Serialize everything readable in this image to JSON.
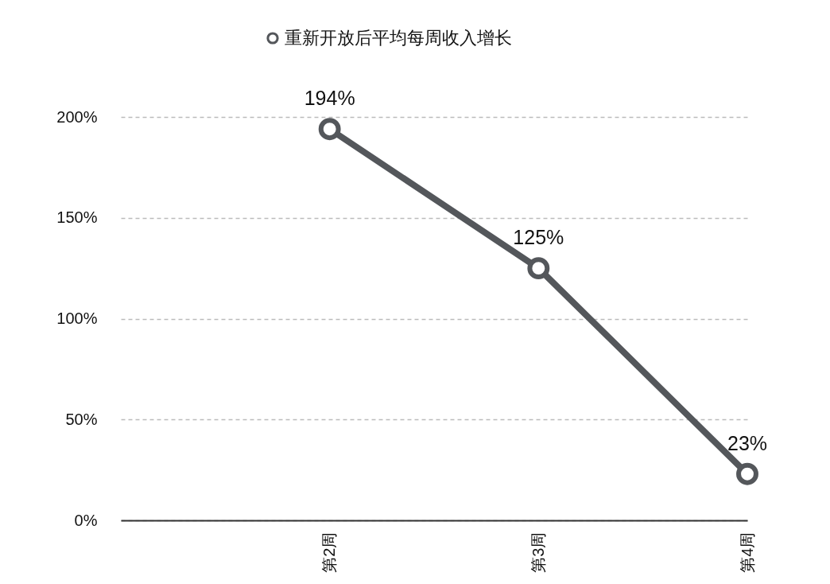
{
  "chart_data": {
    "type": "line",
    "categories": [
      null,
      "第2周",
      "第3周",
      "第4周"
    ],
    "series": [
      {
        "name": "重新开放后平均每周收入增长",
        "color": "#54575b",
        "values": [
          null,
          194,
          125,
          23
        ],
        "value_labels": [
          null,
          "194%",
          "125%",
          "23%"
        ]
      }
    ],
    "ylim": [
      0,
      200
    ],
    "yticks": [
      {
        "value": 0,
        "label": "0%"
      },
      {
        "value": 50,
        "label": "50%"
      },
      {
        "value": 100,
        "label": "100%"
      },
      {
        "value": 150,
        "label": "150%"
      },
      {
        "value": 200,
        "label": "200%"
      }
    ],
    "grid": "y",
    "legend": "top",
    "marker": "circle",
    "line_style": "solid"
  }
}
